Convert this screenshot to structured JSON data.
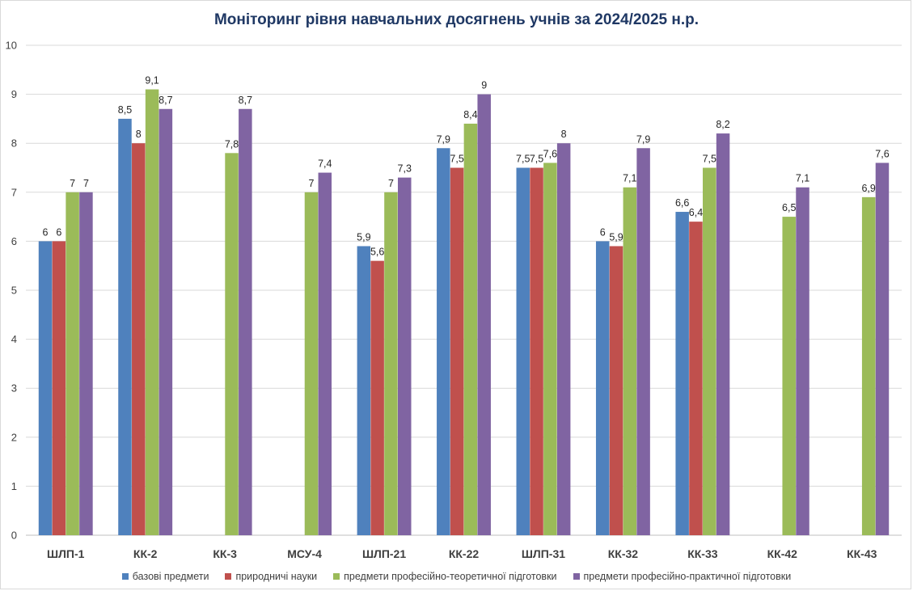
{
  "chart_data": {
    "type": "bar",
    "title": "Моніторинг рівня навчальних досягнень учнів за 2024/2025 н.р.",
    "xlabel": "",
    "ylabel": "",
    "ylim": [
      0,
      10
    ],
    "yticks": [
      "0",
      "1",
      "2",
      "3",
      "4",
      "5",
      "6",
      "7",
      "8",
      "9",
      "10"
    ],
    "grid": true,
    "legend_position": "bottom",
    "categories": [
      "ШЛП-1",
      "КК-2",
      "КК-3",
      "МСУ-4",
      "ШЛП-21",
      "КК-22",
      "ШЛП-31",
      "КК-32",
      "КК-33",
      "КК-42",
      "КК-43"
    ],
    "series": [
      {
        "name": "базові предмети",
        "color": "#4f81bd",
        "values": [
          6,
          8.5,
          null,
          null,
          5.9,
          7.9,
          7.5,
          6,
          6.6,
          null,
          null
        ],
        "labels": [
          "6",
          "8,5",
          "",
          "",
          "5,9",
          "7,9",
          "7,5",
          "6",
          "6,6",
          "",
          ""
        ]
      },
      {
        "name": "природничі науки",
        "color": "#c0504d",
        "values": [
          6,
          8,
          null,
          null,
          5.6,
          7.5,
          7.5,
          5.9,
          6.4,
          null,
          null
        ],
        "labels": [
          "6",
          "8",
          "",
          "",
          "5,6",
          "7,5",
          "7,5",
          "5,9",
          "6,4",
          "",
          ""
        ]
      },
      {
        "name": "предмети професійно-теоретичної підготовки",
        "color": "#9bbb59",
        "values": [
          7,
          9.1,
          7.8,
          7,
          7,
          8.4,
          7.6,
          7.1,
          7.5,
          6.5,
          6.9
        ],
        "labels": [
          "7",
          "9,1",
          "7,8",
          "7",
          "7",
          "8,4",
          "7,6",
          "7,1",
          "7,5",
          "6,5",
          "6,9"
        ]
      },
      {
        "name": "предмети професійно-практичної підготовки",
        "color": "#8064a2",
        "values": [
          7,
          8.7,
          8.7,
          7.4,
          7.3,
          9,
          8,
          7.9,
          8.2,
          7.1,
          7.6
        ],
        "labels": [
          "7",
          "8,7",
          "8,7",
          "7,4",
          "7,3",
          "9",
          "8",
          "7,9",
          "8,2",
          "7,1",
          "7,6"
        ]
      }
    ]
  }
}
